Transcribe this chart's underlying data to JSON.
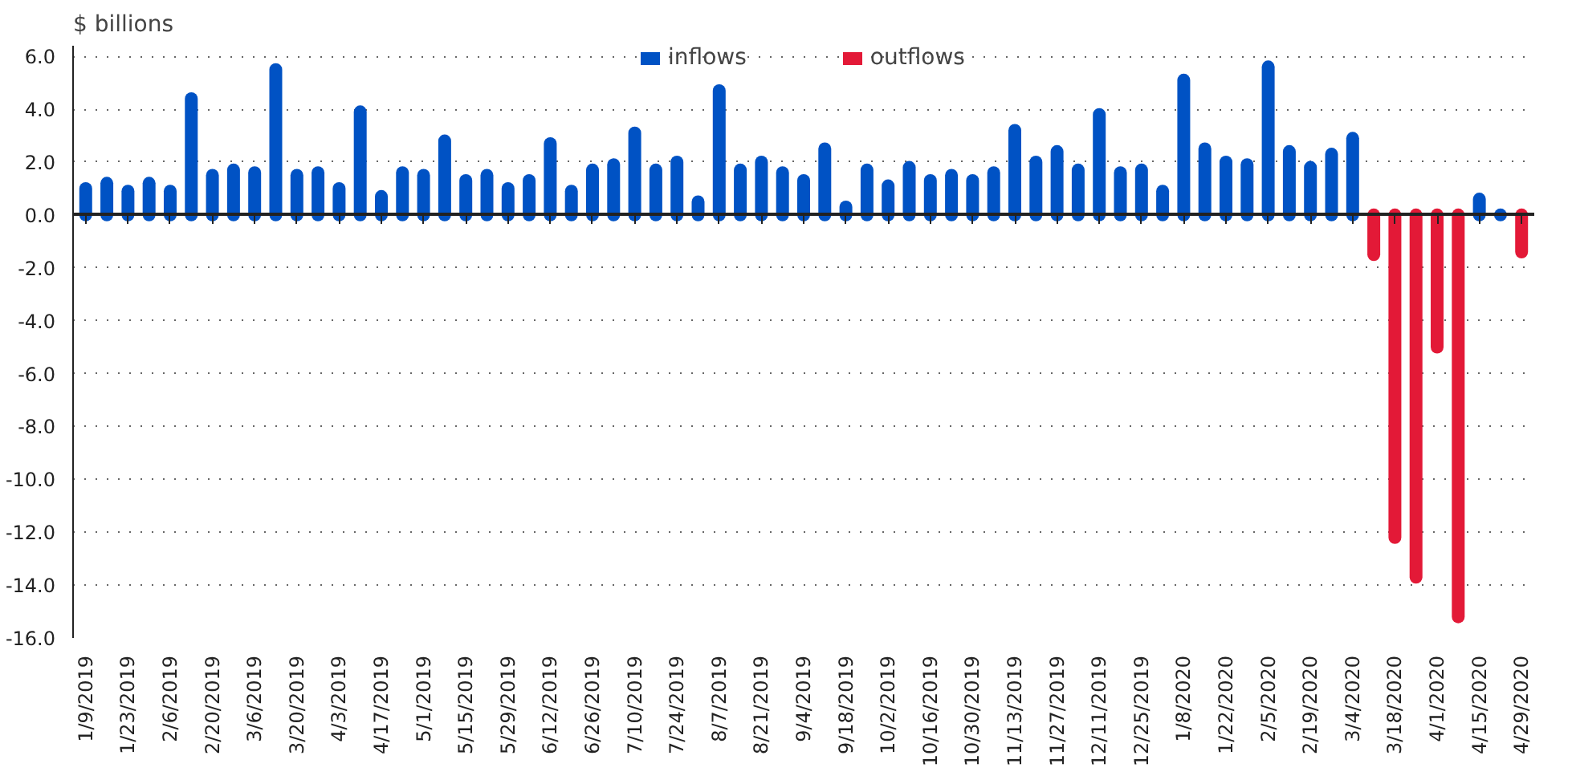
{
  "chart_data": {
    "type": "bar",
    "ylabel": "$ billions",
    "categories": [
      "1/9/2019",
      null,
      "1/23/2019",
      null,
      "2/6/2019",
      null,
      "2/20/2019",
      null,
      "3/6/2019",
      null,
      "3/20/2019",
      null,
      "4/3/2019",
      null,
      "4/17/2019",
      null,
      "5/1/2019",
      null,
      "5/15/2019",
      null,
      "5/29/2019",
      null,
      "6/12/2019",
      null,
      "6/26/2019",
      null,
      "7/10/2019",
      null,
      "7/24/2019",
      null,
      "8/7/2019",
      null,
      "8/21/2019",
      null,
      "9/4/2019",
      null,
      "9/18/2019",
      null,
      "10/2/2019",
      null,
      "10/16/2019",
      null,
      "10/30/2019",
      null,
      "11/13/2019",
      null,
      "11/27/2019",
      null,
      "12/11/2019",
      null,
      "12/25/2019",
      null,
      "1/8/2020",
      null,
      "1/22/2020",
      null,
      "2/5/2020",
      null,
      "2/19/2020",
      null,
      "3/4/2020",
      null,
      "3/18/2020",
      null,
      "4/1/2020",
      null,
      "4/15/2020",
      null,
      "4/29/2020"
    ],
    "series": [
      {
        "name": "inflows",
        "color": "#0052c4",
        "values": [
          1.0,
          1.2,
          0.9,
          1.2,
          0.9,
          4.4,
          1.5,
          1.7,
          1.6,
          5.5,
          1.5,
          1.6,
          1.0,
          3.9,
          0.7,
          1.6,
          1.5,
          2.8,
          1.3,
          1.5,
          1.0,
          1.3,
          2.7,
          0.9,
          1.7,
          1.9,
          3.1,
          1.7,
          2.0,
          0.5,
          4.7,
          1.7,
          2.0,
          1.6,
          1.3,
          2.5,
          0.3,
          1.7,
          1.1,
          1.8,
          1.3,
          1.5,
          1.3,
          1.6,
          3.2,
          2.0,
          2.4,
          1.7,
          3.8,
          1.6,
          1.7,
          0.9,
          5.1,
          2.5,
          2.0,
          1.9,
          5.6,
          2.4,
          1.8,
          2.3,
          2.9,
          null,
          null,
          null,
          null,
          null,
          0.6,
          0.0,
          null
        ]
      },
      {
        "name": "outflows",
        "color": "#e31937",
        "values": [
          null,
          null,
          null,
          null,
          null,
          null,
          null,
          null,
          null,
          null,
          null,
          null,
          null,
          null,
          null,
          null,
          null,
          null,
          null,
          null,
          null,
          null,
          null,
          null,
          null,
          null,
          null,
          null,
          null,
          null,
          null,
          null,
          null,
          null,
          null,
          null,
          null,
          null,
          null,
          null,
          null,
          null,
          null,
          null,
          null,
          null,
          null,
          null,
          null,
          null,
          null,
          null,
          null,
          null,
          null,
          null,
          null,
          null,
          null,
          null,
          null,
          -1.5,
          -12.2,
          -13.7,
          -5.0,
          -15.2,
          null,
          null,
          -1.4
        ]
      }
    ],
    "ylim": [
      -16,
      6.4
    ],
    "yticks": [
      {
        "value": 6,
        "label": "6.0"
      },
      {
        "value": 4,
        "label": "4.0"
      },
      {
        "value": 2,
        "label": "2.0"
      },
      {
        "value": 0,
        "label": "0.0"
      },
      {
        "value": -2,
        "label": "-2.0"
      },
      {
        "value": -4,
        "label": "-4.0"
      },
      {
        "value": -6,
        "label": "-6.0"
      },
      {
        "value": -8,
        "label": "-8.0"
      },
      {
        "value": -10,
        "label": "-10.0"
      },
      {
        "value": -12,
        "label": "-12.0"
      },
      {
        "value": -14,
        "label": "-14.0"
      },
      {
        "value": -16,
        "label": "-16.0"
      }
    ],
    "grid": "y",
    "legend": "top"
  }
}
